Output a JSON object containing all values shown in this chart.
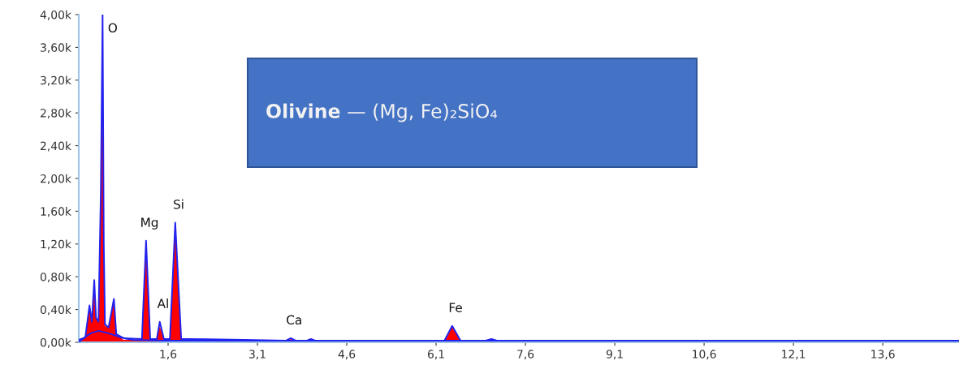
{
  "chart_data": {
    "type": "area",
    "title": "Olivine — (Mg, Fe)₂SiO₄",
    "x": [
      0.1,
      0.21,
      0.28,
      0.32,
      0.36,
      0.39,
      0.43,
      0.47,
      0.5,
      0.52,
      0.54,
      0.6,
      0.69,
      0.73,
      0.85,
      1.16,
      1.23,
      1.3,
      1.41,
      1.46,
      1.53,
      1.63,
      1.72,
      1.82,
      1.91,
      2.87,
      3.58,
      3.66,
      3.74,
      3.93,
      4.0,
      4.07,
      4.91,
      6.24,
      6.37,
      6.51,
      6.93,
      7.03,
      7.12,
      7.64,
      14.88
    ],
    "series": [
      {
        "color": "#ff0000",
        "values": [
          0.03,
          0.06,
          0.42,
          0.25,
          0.74,
          0.3,
          0.25,
          1.65,
          3.58,
          1.0,
          0.2,
          0.18,
          0.5,
          0.09,
          0.03,
          0.03,
          1.2,
          0.03,
          0.03,
          0.2,
          0.03,
          0.03,
          1.4,
          0.04,
          0.03,
          0.02,
          0.02,
          0.04,
          0.02,
          0.02,
          0.03,
          0.02,
          0.01,
          0.01,
          0.19,
          0.01,
          0.01,
          0.03,
          0.01,
          0.01,
          0.01
        ]
      },
      {
        "type": "line",
        "color": "#2222ee",
        "values": [
          0.03,
          0.06,
          0.45,
          0.25,
          0.76,
          0.3,
          0.25,
          1.8,
          4.0,
          1.2,
          0.22,
          0.18,
          0.53,
          0.1,
          0.05,
          0.04,
          1.24,
          0.04,
          0.04,
          0.25,
          0.04,
          0.04,
          1.46,
          0.04,
          0.04,
          0.03,
          0.02,
          0.05,
          0.02,
          0.02,
          0.04,
          0.02,
          0.02,
          0.02,
          0.2,
          0.02,
          0.02,
          0.04,
          0.02,
          0.02,
          0.02
        ]
      },
      {
        "type": "line",
        "color": "#2222ee",
        "x": [
          0.1,
          0.2,
          0.3,
          0.43,
          0.6,
          0.8,
          1.0,
          1.5,
          14.88
        ],
        "values": [
          0.0,
          0.06,
          0.11,
          0.14,
          0.11,
          0.06,
          0.03,
          0.02,
          0.02
        ]
      }
    ],
    "annotations": [
      {
        "text": "O",
        "x": 0.5,
        "y": 4.0
      },
      {
        "text": "Mg",
        "x": 1.23,
        "y": 1.24
      },
      {
        "text": "Al",
        "x": 1.46,
        "y": 0.25
      },
      {
        "text": "Si",
        "x": 1.72,
        "y": 1.46
      },
      {
        "text": "Ca",
        "x": 3.66,
        "y": 0.05
      },
      {
        "text": "Fe",
        "x": 6.37,
        "y": 0.2
      }
    ],
    "xlim": [
      0.1,
      14.88
    ],
    "xticks": [
      {
        "value": 1.6,
        "label": "1,6"
      },
      {
        "value": 3.1,
        "label": "3,1"
      },
      {
        "value": 4.6,
        "label": "4,6"
      },
      {
        "value": 6.1,
        "label": "6,1"
      },
      {
        "value": 7.6,
        "label": "7,6"
      },
      {
        "value": 9.1,
        "label": "9,1"
      },
      {
        "value": 10.6,
        "label": "10,6"
      },
      {
        "value": 12.1,
        "label": "12,1"
      },
      {
        "value": 13.6,
        "label": "13,6"
      }
    ],
    "ylim": [
      0,
      4.0
    ],
    "yticks": [
      {
        "value": 0,
        "label": "0,00k"
      },
      {
        "value": 0.4,
        "label": "0,40k"
      },
      {
        "value": 0.8,
        "label": "0,80k"
      },
      {
        "value": 1.2,
        "label": "1,20k"
      },
      {
        "value": 1.6,
        "label": "1,60k"
      },
      {
        "value": 2.0,
        "label": "2,00k"
      },
      {
        "value": 2.4,
        "label": "2,40k"
      },
      {
        "value": 2.8,
        "label": "2,80k"
      },
      {
        "value": 3.2,
        "label": "3,20k"
      },
      {
        "value": 3.6,
        "label": "3,60k"
      },
      {
        "value": 4.0,
        "label": "4,00k"
      }
    ],
    "grid": false,
    "legend": false
  }
}
